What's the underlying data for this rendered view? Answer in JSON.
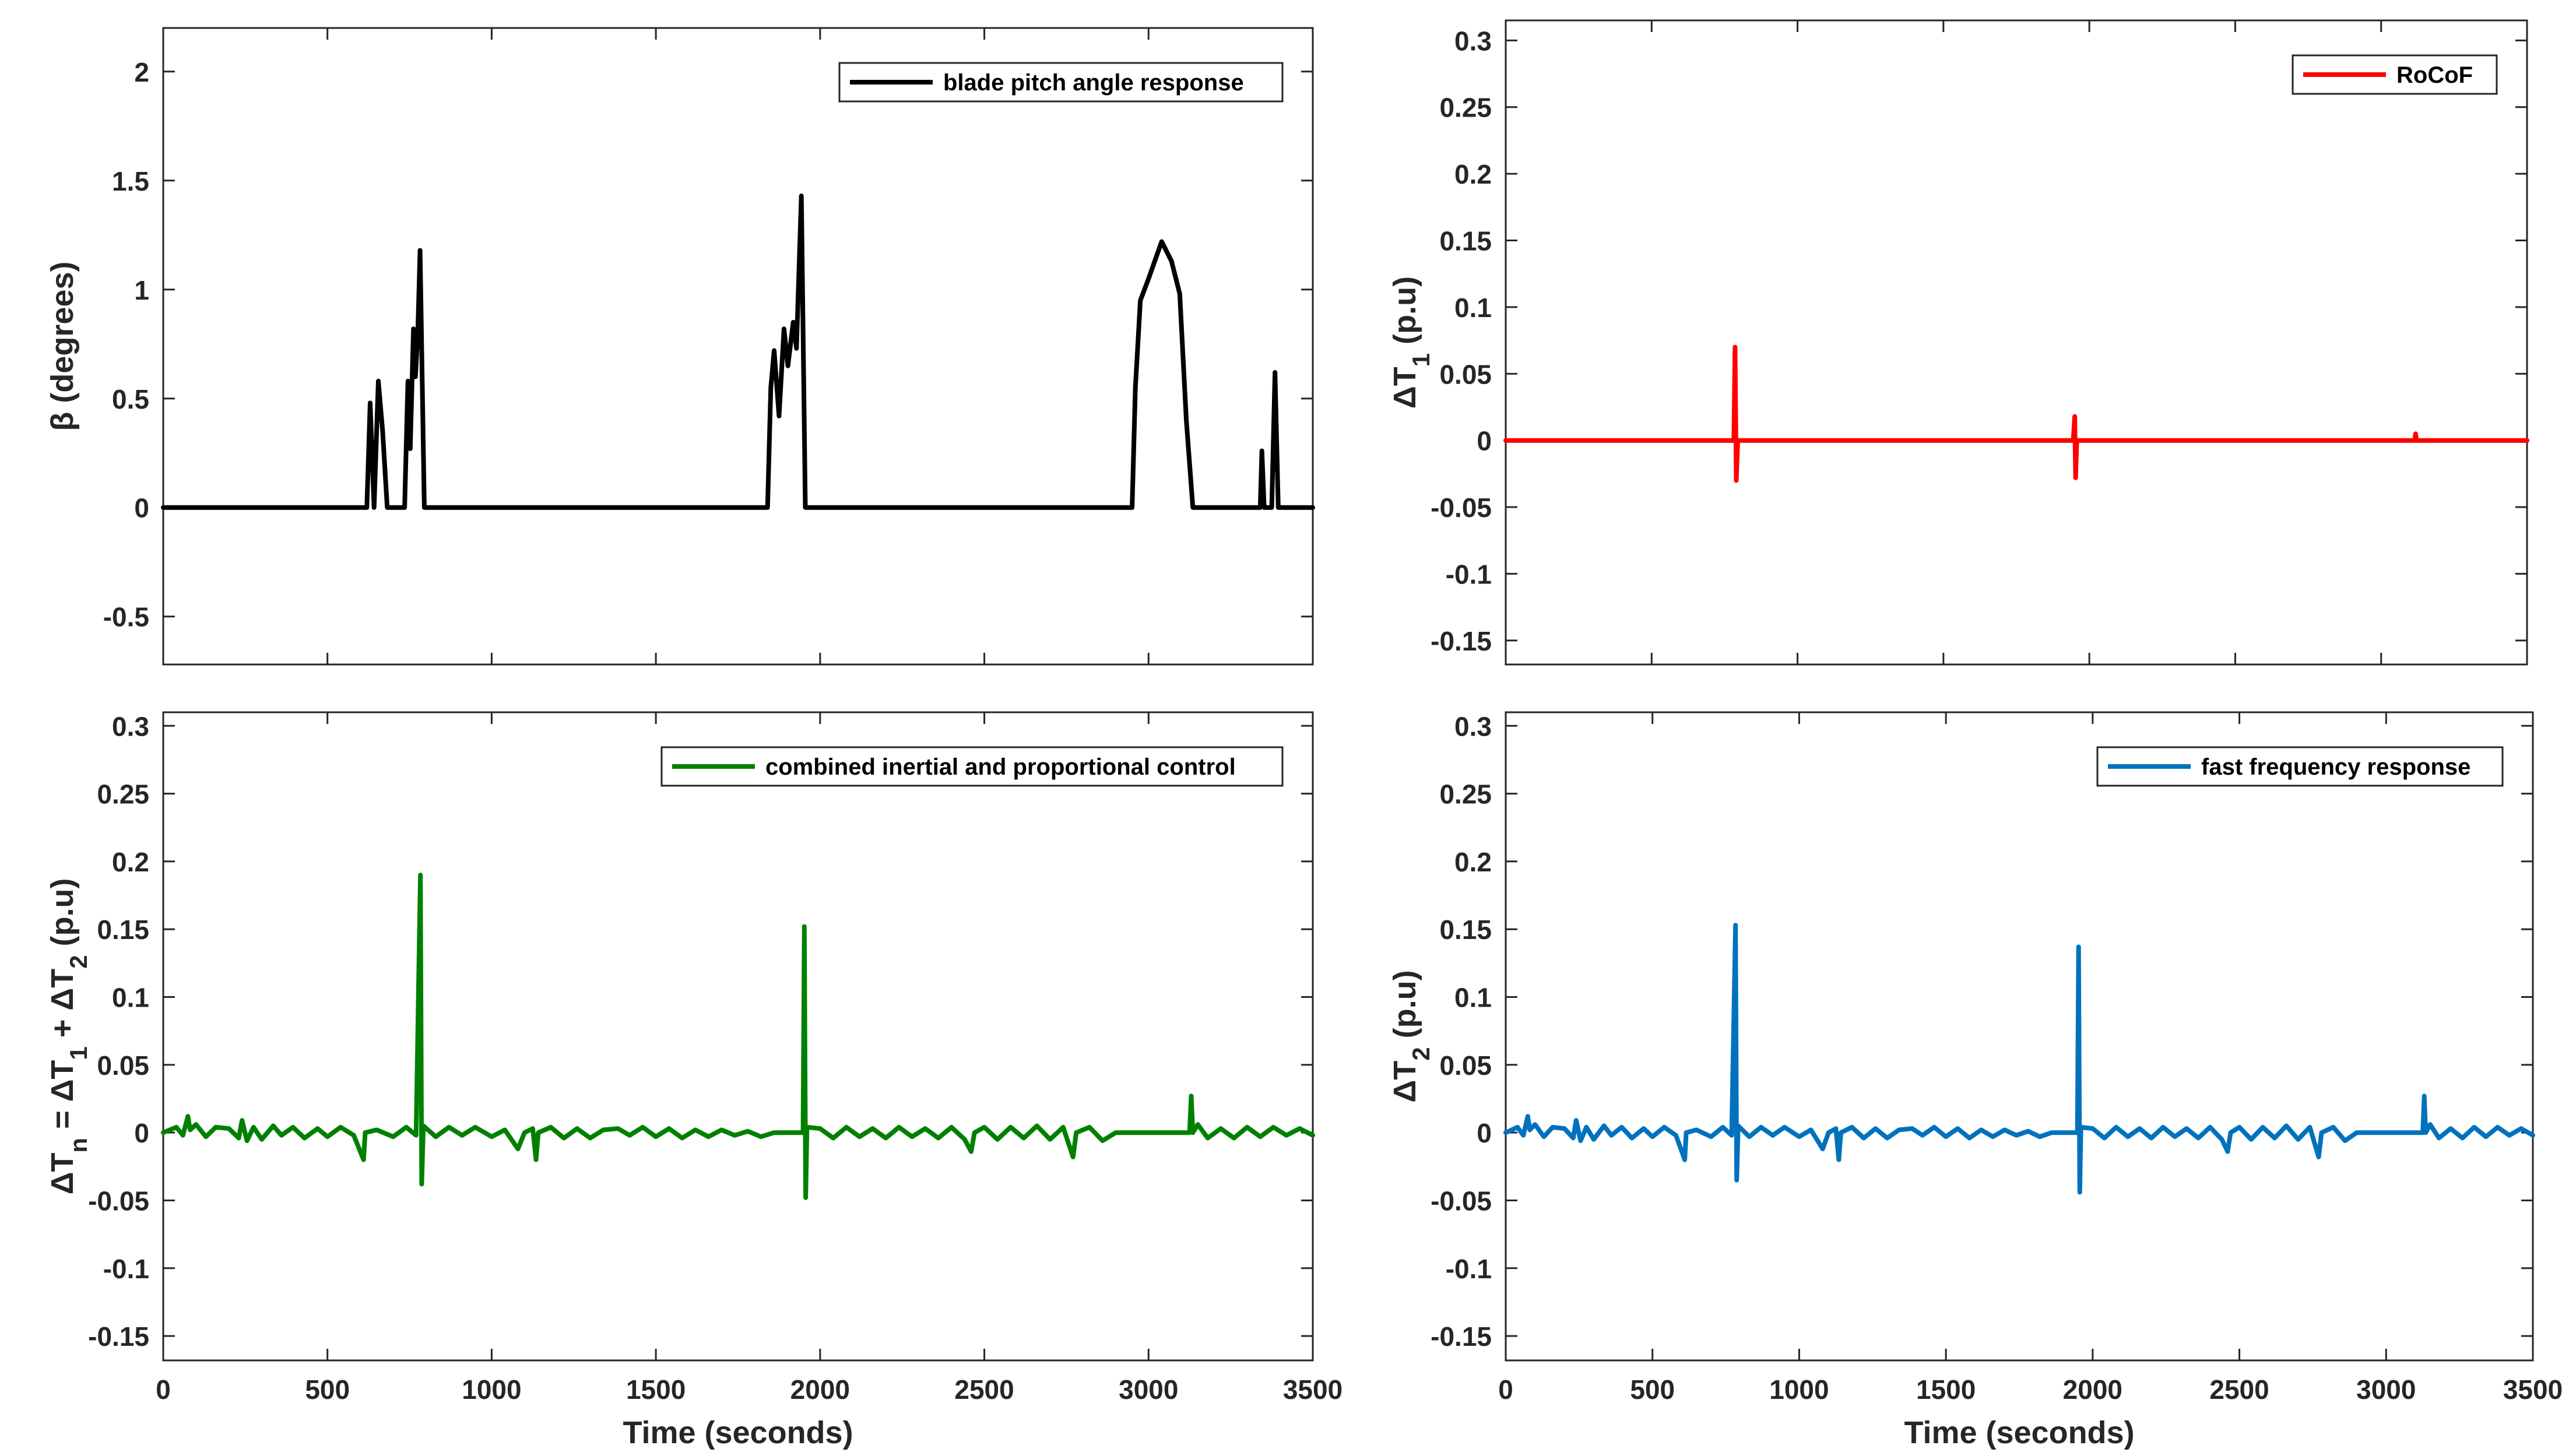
{
  "chart_data": [
    {
      "id": "pitch",
      "type": "line",
      "ylim": [
        -0.72,
        2.2
      ],
      "xlim": [
        0,
        3500
      ],
      "yticks": [
        -0.5,
        0,
        0.5,
        1,
        1.5,
        2
      ],
      "yticklabels": [
        "-0.5",
        "0",
        "0.5",
        "1",
        "1.5",
        "2"
      ],
      "xticks": [
        0,
        500,
        1000,
        1500,
        2000,
        2500,
        3000,
        3500
      ],
      "xticklabels": [],
      "ylabel": "β (degrees)",
      "xlabel": "",
      "legend": "blade pitch angle response",
      "legend_position": "top-right",
      "color": "#000000",
      "points": [
        [
          0,
          0
        ],
        [
          620,
          0
        ],
        [
          630,
          0.48
        ],
        [
          642,
          0
        ],
        [
          655,
          0.58
        ],
        [
          668,
          0.35
        ],
        [
          682,
          0
        ],
        [
          735,
          0
        ],
        [
          745,
          0.58
        ],
        [
          752,
          0.27
        ],
        [
          762,
          0.82
        ],
        [
          768,
          0.6
        ],
        [
          775,
          0.8
        ],
        [
          782,
          1.18
        ],
        [
          795,
          0
        ],
        [
          1840,
          0
        ],
        [
          1850,
          0.55
        ],
        [
          1860,
          0.72
        ],
        [
          1875,
          0.42
        ],
        [
          1890,
          0.82
        ],
        [
          1902,
          0.65
        ],
        [
          1918,
          0.85
        ],
        [
          1928,
          0.73
        ],
        [
          1943,
          1.43
        ],
        [
          1955,
          0
        ],
        [
          2950,
          0
        ],
        [
          2960,
          0.55
        ],
        [
          2975,
          0.95
        ],
        [
          3000,
          1.05
        ],
        [
          3040,
          1.22
        ],
        [
          3070,
          1.13
        ],
        [
          3095,
          0.98
        ],
        [
          3115,
          0.4
        ],
        [
          3135,
          0
        ],
        [
          3340,
          0
        ],
        [
          3345,
          0.26
        ],
        [
          3352,
          0
        ],
        [
          3375,
          0
        ],
        [
          3385,
          0.62
        ],
        [
          3395,
          0
        ],
        [
          3500,
          0
        ]
      ]
    },
    {
      "id": "rocof",
      "type": "line",
      "ylim": [
        -0.168,
        0.315
      ],
      "xlim": [
        0,
        3500
      ],
      "yticks": [
        -0.15,
        -0.1,
        -0.05,
        0,
        0.05,
        0.1,
        0.15,
        0.2,
        0.25,
        0.3
      ],
      "yticklabels": [
        "-0.15",
        "-0.1",
        "-0.05",
        "0",
        "0.05",
        "0.1",
        "0.15",
        "0.2",
        "0.25",
        "0.3"
      ],
      "xticks": [
        0,
        500,
        1000,
        1500,
        2000,
        2500,
        3000,
        3500
      ],
      "xticklabels": [],
      "ylabel": "ΔT",
      "ylabel_sub": "1",
      "ylabel_rest": " (p.u)",
      "xlabel": "",
      "legend": "RoCoF",
      "legend_position": "top-right",
      "color": "#ff0000",
      "points": [
        [
          0,
          0
        ],
        [
          782,
          0
        ],
        [
          786,
          0.07
        ],
        [
          790,
          -0.03
        ],
        [
          795,
          0
        ],
        [
          1945,
          0
        ],
        [
          1950,
          0.018
        ],
        [
          1953,
          -0.028
        ],
        [
          1957,
          0
        ],
        [
          3115,
          0
        ],
        [
          3118,
          0.005
        ],
        [
          3121,
          0
        ],
        [
          3500,
          0
        ]
      ]
    },
    {
      "id": "combined",
      "type": "line",
      "ylim": [
        -0.168,
        0.31
      ],
      "xlim": [
        0,
        3500
      ],
      "yticks": [
        -0.15,
        -0.1,
        -0.05,
        0,
        0.05,
        0.1,
        0.15,
        0.2,
        0.25,
        0.3
      ],
      "yticklabels": [
        "-0.15",
        "-0.1",
        "-0.05",
        "0",
        "0.05",
        "0.1",
        "0.15",
        "0.2",
        "0.25",
        "0.3"
      ],
      "xticks": [
        0,
        500,
        1000,
        1500,
        2000,
        2500,
        3000,
        3500
      ],
      "xticklabels": [
        "0",
        "500",
        "1000",
        "1500",
        "2000",
        "2500",
        "3000",
        "3500"
      ],
      "ylabel": "ΔT",
      "ylabel_sub": "n",
      "ylabel_rest": " = ΔT",
      "ylabel_sub2": "1",
      "ylabel_rest2": " + ΔT",
      "ylabel_sub3": "2",
      "ylabel_rest3": " (p.u)",
      "xlabel": "Time (seconds)",
      "legend": "combined inertial and proportional control",
      "legend_position": "top-right",
      "color": "#008000",
      "points": [
        [
          0,
          0
        ],
        [
          40,
          0.004
        ],
        [
          60,
          -0.002
        ],
        [
          75,
          0.012
        ],
        [
          82,
          0.002
        ],
        [
          100,
          0.006
        ],
        [
          130,
          -0.003
        ],
        [
          160,
          0.004
        ],
        [
          200,
          0.003
        ],
        [
          230,
          -0.004
        ],
        [
          240,
          0.009
        ],
        [
          255,
          -0.006
        ],
        [
          275,
          0.004
        ],
        [
          300,
          -0.005
        ],
        [
          335,
          0.005
        ],
        [
          360,
          -0.002
        ],
        [
          395,
          0.004
        ],
        [
          430,
          -0.004
        ],
        [
          470,
          0.003
        ],
        [
          500,
          -0.003
        ],
        [
          540,
          0.004
        ],
        [
          580,
          -0.002
        ],
        [
          610,
          -0.02
        ],
        [
          615,
          0
        ],
        [
          650,
          0.002
        ],
        [
          700,
          -0.003
        ],
        [
          740,
          0.004
        ],
        [
          770,
          -0.002
        ],
        [
          783,
          0.19
        ],
        [
          787,
          -0.038
        ],
        [
          792,
          0.005
        ],
        [
          830,
          -0.003
        ],
        [
          870,
          0.004
        ],
        [
          910,
          -0.002
        ],
        [
          950,
          0.004
        ],
        [
          1000,
          -0.003
        ],
        [
          1040,
          0.002
        ],
        [
          1080,
          -0.012
        ],
        [
          1100,
          0
        ],
        [
          1125,
          0.003
        ],
        [
          1135,
          -0.02
        ],
        [
          1142,
          0
        ],
        [
          1180,
          0.004
        ],
        [
          1220,
          -0.004
        ],
        [
          1260,
          0.003
        ],
        [
          1300,
          -0.004
        ],
        [
          1340,
          0.002
        ],
        [
          1385,
          0.003
        ],
        [
          1420,
          -0.002
        ],
        [
          1460,
          0.004
        ],
        [
          1500,
          -0.003
        ],
        [
          1540,
          0.003
        ],
        [
          1580,
          -0.004
        ],
        [
          1620,
          0.002
        ],
        [
          1660,
          -0.003
        ],
        [
          1700,
          0.002
        ],
        [
          1740,
          -0.002
        ],
        [
          1780,
          0.001
        ],
        [
          1820,
          -0.003
        ],
        [
          1860,
          0
        ],
        [
          1900,
          0
        ],
        [
          1948,
          0
        ],
        [
          1952,
          0.152
        ],
        [
          1956,
          -0.048
        ],
        [
          1960,
          0.004
        ],
        [
          2000,
          0.003
        ],
        [
          2040,
          -0.004
        ],
        [
          2080,
          0.004
        ],
        [
          2120,
          -0.003
        ],
        [
          2160,
          0.003
        ],
        [
          2200,
          -0.004
        ],
        [
          2240,
          0.004
        ],
        [
          2280,
          -0.003
        ],
        [
          2320,
          0.003
        ],
        [
          2360,
          -0.004
        ],
        [
          2400,
          0.004
        ],
        [
          2440,
          -0.005
        ],
        [
          2460,
          -0.014
        ],
        [
          2470,
          0
        ],
        [
          2500,
          0.004
        ],
        [
          2540,
          -0.005
        ],
        [
          2580,
          0.004
        ],
        [
          2620,
          -0.004
        ],
        [
          2660,
          0.005
        ],
        [
          2700,
          -0.005
        ],
        [
          2740,
          0.004
        ],
        [
          2770,
          -0.018
        ],
        [
          2780,
          0
        ],
        [
          2820,
          0.004
        ],
        [
          2860,
          -0.006
        ],
        [
          2900,
          0
        ],
        [
          2950,
          0
        ],
        [
          3000,
          0
        ],
        [
          3050,
          0
        ],
        [
          3100,
          0
        ],
        [
          3125,
          0
        ],
        [
          3130,
          0.027
        ],
        [
          3135,
          0
        ],
        [
          3150,
          0.006
        ],
        [
          3180,
          -0.004
        ],
        [
          3220,
          0.003
        ],
        [
          3260,
          -0.004
        ],
        [
          3300,
          0.004
        ],
        [
          3340,
          -0.003
        ],
        [
          3380,
          0.004
        ],
        [
          3420,
          -0.002
        ],
        [
          3460,
          0.003
        ],
        [
          3500,
          -0.002
        ]
      ]
    },
    {
      "id": "ffr",
      "type": "line",
      "ylim": [
        -0.168,
        0.31
      ],
      "xlim": [
        0,
        3500
      ],
      "yticks": [
        -0.15,
        -0.1,
        -0.05,
        0,
        0.05,
        0.1,
        0.15,
        0.2,
        0.25,
        0.3
      ],
      "yticklabels": [
        "-0.15",
        "-0.1",
        "-0.05",
        "0",
        "0.05",
        "0.1",
        "0.15",
        "0.2",
        "0.25",
        "0.3"
      ],
      "xticks": [
        0,
        500,
        1000,
        1500,
        2000,
        2500,
        3000,
        3500
      ],
      "xticklabels": [
        "0",
        "500",
        "1000",
        "1500",
        "2000",
        "2500",
        "3000",
        "3500"
      ],
      "ylabel": "ΔT",
      "ylabel_sub": "2",
      "ylabel_rest": " (p.u)",
      "xlabel": "Time (seconds)",
      "legend": "fast frequency response",
      "legend_position": "top-right",
      "color": "#0072bd",
      "points": [
        [
          0,
          0
        ],
        [
          40,
          0.004
        ],
        [
          60,
          -0.002
        ],
        [
          75,
          0.012
        ],
        [
          82,
          0.002
        ],
        [
          100,
          0.006
        ],
        [
          130,
          -0.003
        ],
        [
          160,
          0.004
        ],
        [
          200,
          0.003
        ],
        [
          230,
          -0.004
        ],
        [
          240,
          0.009
        ],
        [
          255,
          -0.006
        ],
        [
          275,
          0.004
        ],
        [
          300,
          -0.005
        ],
        [
          335,
          0.005
        ],
        [
          360,
          -0.002
        ],
        [
          395,
          0.004
        ],
        [
          430,
          -0.004
        ],
        [
          470,
          0.003
        ],
        [
          500,
          -0.003
        ],
        [
          540,
          0.004
        ],
        [
          580,
          -0.002
        ],
        [
          610,
          -0.02
        ],
        [
          615,
          0
        ],
        [
          650,
          0.002
        ],
        [
          700,
          -0.003
        ],
        [
          740,
          0.004
        ],
        [
          770,
          -0.002
        ],
        [
          783,
          0.153
        ],
        [
          787,
          -0.035
        ],
        [
          792,
          0.005
        ],
        [
          830,
          -0.003
        ],
        [
          870,
          0.004
        ],
        [
          910,
          -0.002
        ],
        [
          950,
          0.004
        ],
        [
          1000,
          -0.003
        ],
        [
          1040,
          0.002
        ],
        [
          1080,
          -0.012
        ],
        [
          1100,
          0
        ],
        [
          1125,
          0.003
        ],
        [
          1135,
          -0.02
        ],
        [
          1142,
          0
        ],
        [
          1180,
          0.004
        ],
        [
          1220,
          -0.004
        ],
        [
          1260,
          0.003
        ],
        [
          1300,
          -0.004
        ],
        [
          1340,
          0.002
        ],
        [
          1385,
          0.003
        ],
        [
          1420,
          -0.002
        ],
        [
          1460,
          0.004
        ],
        [
          1500,
          -0.003
        ],
        [
          1540,
          0.003
        ],
        [
          1580,
          -0.004
        ],
        [
          1620,
          0.002
        ],
        [
          1660,
          -0.003
        ],
        [
          1700,
          0.002
        ],
        [
          1740,
          -0.002
        ],
        [
          1780,
          0.001
        ],
        [
          1820,
          -0.003
        ],
        [
          1860,
          0
        ],
        [
          1900,
          0
        ],
        [
          1948,
          0
        ],
        [
          1952,
          0.137
        ],
        [
          1956,
          -0.044
        ],
        [
          1960,
          0.004
        ],
        [
          2000,
          0.003
        ],
        [
          2040,
          -0.004
        ],
        [
          2080,
          0.004
        ],
        [
          2120,
          -0.003
        ],
        [
          2160,
          0.003
        ],
        [
          2200,
          -0.004
        ],
        [
          2240,
          0.004
        ],
        [
          2280,
          -0.003
        ],
        [
          2320,
          0.003
        ],
        [
          2360,
          -0.004
        ],
        [
          2400,
          0.004
        ],
        [
          2440,
          -0.005
        ],
        [
          2460,
          -0.014
        ],
        [
          2470,
          0
        ],
        [
          2500,
          0.004
        ],
        [
          2540,
          -0.005
        ],
        [
          2580,
          0.004
        ],
        [
          2620,
          -0.004
        ],
        [
          2660,
          0.005
        ],
        [
          2700,
          -0.005
        ],
        [
          2740,
          0.004
        ],
        [
          2770,
          -0.018
        ],
        [
          2780,
          0
        ],
        [
          2820,
          0.004
        ],
        [
          2860,
          -0.006
        ],
        [
          2900,
          0
        ],
        [
          2950,
          0
        ],
        [
          3000,
          0
        ],
        [
          3050,
          0
        ],
        [
          3100,
          0
        ],
        [
          3125,
          0
        ],
        [
          3130,
          0.027
        ],
        [
          3135,
          0
        ],
        [
          3150,
          0.006
        ],
        [
          3180,
          -0.004
        ],
        [
          3220,
          0.003
        ],
        [
          3260,
          -0.004
        ],
        [
          3300,
          0.004
        ],
        [
          3340,
          -0.003
        ],
        [
          3380,
          0.004
        ],
        [
          3420,
          -0.002
        ],
        [
          3460,
          0.003
        ],
        [
          3500,
          -0.002
        ]
      ]
    }
  ]
}
